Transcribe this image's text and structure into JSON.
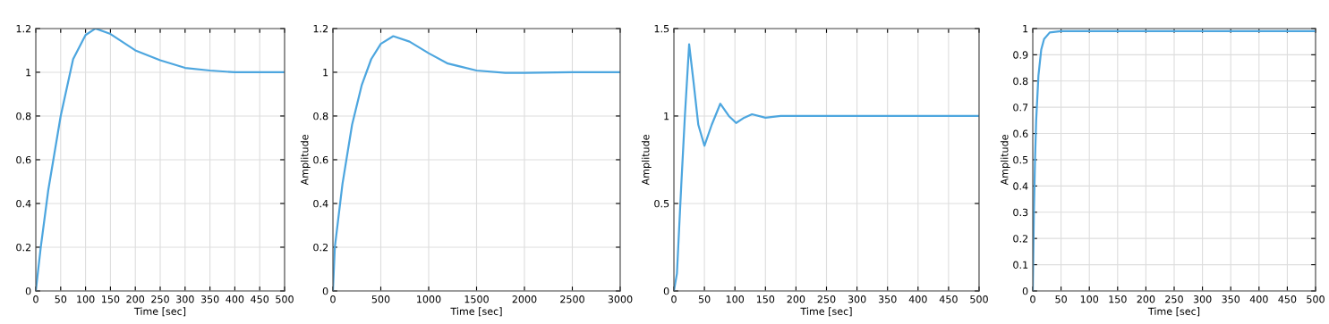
{
  "chart_data": [
    {
      "type": "line",
      "xlabel": "Time [sec]",
      "xlim": [
        0,
        500
      ],
      "xticks": [
        0,
        50,
        100,
        150,
        200,
        250,
        300,
        350,
        400,
        450,
        500
      ],
      "ylim": [
        0,
        1.2
      ],
      "yticks": [
        0,
        0.2,
        0.4,
        0.6,
        0.8,
        1,
        1.2
      ],
      "grid": true,
      "series": [
        {
          "color": "#4da6df",
          "x": [
            0,
            10,
            25,
            50,
            75,
            100,
            120,
            150,
            200,
            250,
            300,
            350,
            400,
            450,
            500
          ],
          "values": [
            0,
            0.2,
            0.46,
            0.8,
            1.06,
            1.17,
            1.2,
            1.175,
            1.1,
            1.055,
            1.02,
            1.008,
            1.0,
            1.0,
            1.0
          ]
        }
      ]
    },
    {
      "type": "line",
      "xlabel": "Time [sec]",
      "ylabel": "Amplitude",
      "xlim": [
        0,
        3000
      ],
      "xticks": [
        0,
        500,
        1000,
        1500,
        2000,
        2500,
        3000
      ],
      "ylim": [
        0,
        1.2
      ],
      "yticks": [
        0,
        0.2,
        0.4,
        0.6,
        0.8,
        1,
        1.2
      ],
      "grid": true,
      "series": [
        {
          "color": "#4da6df",
          "x": [
            0,
            20,
            100,
            200,
            300,
            400,
            500,
            630,
            800,
            1000,
            1200,
            1500,
            1800,
            2000,
            2500,
            3000
          ],
          "values": [
            0,
            0.2,
            0.49,
            0.76,
            0.94,
            1.06,
            1.13,
            1.165,
            1.14,
            1.087,
            1.04,
            1.008,
            0.997,
            0.997,
            1.0,
            1.0
          ]
        }
      ]
    },
    {
      "type": "line",
      "xlabel": "Time [sec]",
      "ylabel": "Amplitude",
      "xlim": [
        0,
        500
      ],
      "xticks": [
        0,
        50,
        100,
        150,
        200,
        250,
        300,
        350,
        400,
        450,
        500
      ],
      "ylim": [
        0,
        1.5
      ],
      "yticks": [
        0,
        0.5,
        1,
        1.5
      ],
      "grid": true,
      "series": [
        {
          "color": "#4da6df",
          "x": [
            0,
            5,
            12,
            18,
            25,
            32,
            40,
            50,
            62,
            76,
            90,
            102,
            115,
            128,
            150,
            175,
            200,
            300,
            400,
            500
          ],
          "values": [
            0,
            0.1,
            0.6,
            1.0,
            1.41,
            1.2,
            0.95,
            0.83,
            0.95,
            1.07,
            1.0,
            0.96,
            0.99,
            1.01,
            0.99,
            1.0,
            1.0,
            1.0,
            1.0,
            1.0
          ]
        }
      ]
    },
    {
      "type": "line",
      "xlabel": "Time [sec]",
      "ylabel": "Amplitude",
      "xlim": [
        0,
        500
      ],
      "xticks": [
        0,
        50,
        100,
        150,
        200,
        250,
        300,
        350,
        400,
        450,
        500
      ],
      "ylim": [
        0,
        1
      ],
      "yticks": [
        0,
        0.1,
        0.2,
        0.3,
        0.4,
        0.5,
        0.6,
        0.7,
        0.8,
        0.9,
        1
      ],
      "grid": true,
      "series": [
        {
          "color": "#4da6df",
          "x": [
            0,
            2,
            4,
            6,
            10,
            15,
            20,
            30,
            50,
            100,
            200,
            300,
            400,
            500
          ],
          "values": [
            0,
            0.3,
            0.5,
            0.65,
            0.82,
            0.92,
            0.96,
            0.985,
            0.99,
            0.99,
            0.99,
            0.99,
            0.99,
            0.99
          ]
        }
      ]
    }
  ]
}
